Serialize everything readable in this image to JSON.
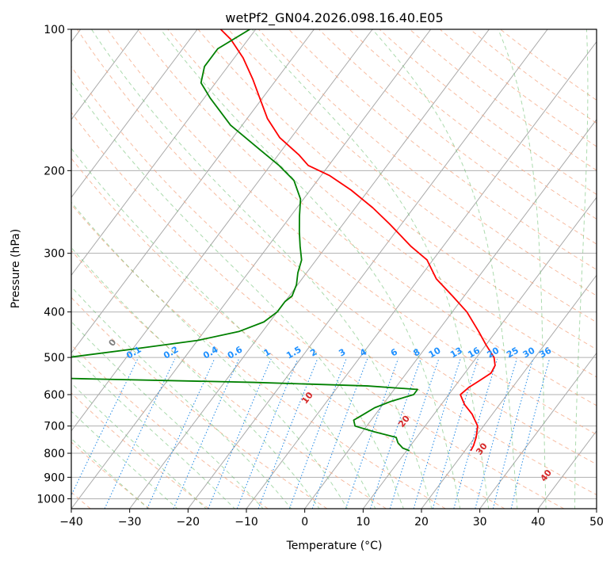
{
  "chart_data": {
    "type": "line",
    "subtype": "skew-T log-P diagram",
    "title": "wetPf2_GN04.2026.098.16.40.E05",
    "xlabel": "Temperature (°C)",
    "ylabel": "Pressure (hPa)",
    "xlim": [
      -40,
      50
    ],
    "ylim_hpa": [
      1050,
      100
    ],
    "x_ticks": [
      -40,
      -30,
      -20,
      -10,
      0,
      10,
      20,
      30,
      40,
      50
    ],
    "x_tick_labels": [
      "−40",
      "−30",
      "−20",
      "−10",
      "0",
      "10",
      "20",
      "30",
      "40",
      "50"
    ],
    "y_ticks": [
      100,
      200,
      300,
      400,
      500,
      600,
      700,
      800,
      900,
      1000
    ],
    "y_tick_labels": [
      "100",
      "200",
      "300",
      "400",
      "500",
      "600",
      "700",
      "800",
      "900",
      "1000"
    ],
    "series": [
      {
        "name": "temperature",
        "color": "#ff0000",
        "p": [
          790,
          770,
          740,
          700,
          660,
          630,
          600,
          580,
          560,
          540,
          520,
          500,
          470,
          440,
          400,
          370,
          340,
          310,
          290,
          260,
          240,
          220,
          205,
          195,
          185,
          170,
          155,
          140,
          128,
          115,
          105,
          100
        ],
        "t": [
          21,
          20.8,
          20.2,
          19,
          16.5,
          14,
          12,
          12.5,
          13.5,
          14.5,
          14.2,
          13,
          10,
          7,
          2.5,
          -2,
          -7,
          -11,
          -15.5,
          -22,
          -27,
          -33,
          -38.5,
          -43.5,
          -46.5,
          -52,
          -56.5,
          -60.5,
          -64,
          -68.5,
          -73,
          -76
        ]
      },
      {
        "name": "dewpoint",
        "color": "#008000",
        "p": [
          790,
          780,
          760,
          740,
          720,
          700,
          680,
          660,
          640,
          620,
          600,
          585,
          575,
          565,
          555,
          540,
          520,
          500,
          480,
          460,
          440,
          420,
          400,
          380,
          370,
          350,
          330,
          310,
          290,
          270,
          250,
          230,
          210,
          195,
          180,
          160,
          140,
          130,
          120,
          110,
          100
        ],
        "t": [
          10.5,
          9,
          7.5,
          6.5,
          2,
          -2,
          -3,
          -2,
          -1,
          1,
          4,
          4,
          -5,
          -25,
          -55,
          -90,
          -70,
          -60,
          -50,
          -40,
          -34,
          -31,
          -30,
          -30,
          -29.5,
          -30.2,
          -31.5,
          -32.5,
          -34.5,
          -36.5,
          -38.5,
          -40.5,
          -44,
          -48.5,
          -54,
          -62,
          -69,
          -72.5,
          -74,
          -74,
          -71
        ]
      }
    ],
    "dry_adiabats_c": [
      -100,
      -90,
      -80,
      -70,
      -60,
      -50,
      -40,
      -30,
      -20,
      -10,
      0,
      10,
      20,
      30,
      40
    ],
    "moist_adiabats_c": [
      0,
      10,
      20,
      30,
      40
    ],
    "mixing_ratios_gkg": [
      "0.1",
      "0.2",
      "0.4",
      "0.6",
      "1",
      "1.5",
      "2",
      "3",
      "4",
      "6",
      "8",
      "10",
      "13",
      "16",
      "20",
      "25",
      "30",
      "36"
    ],
    "grid": true,
    "legend": "none"
  }
}
